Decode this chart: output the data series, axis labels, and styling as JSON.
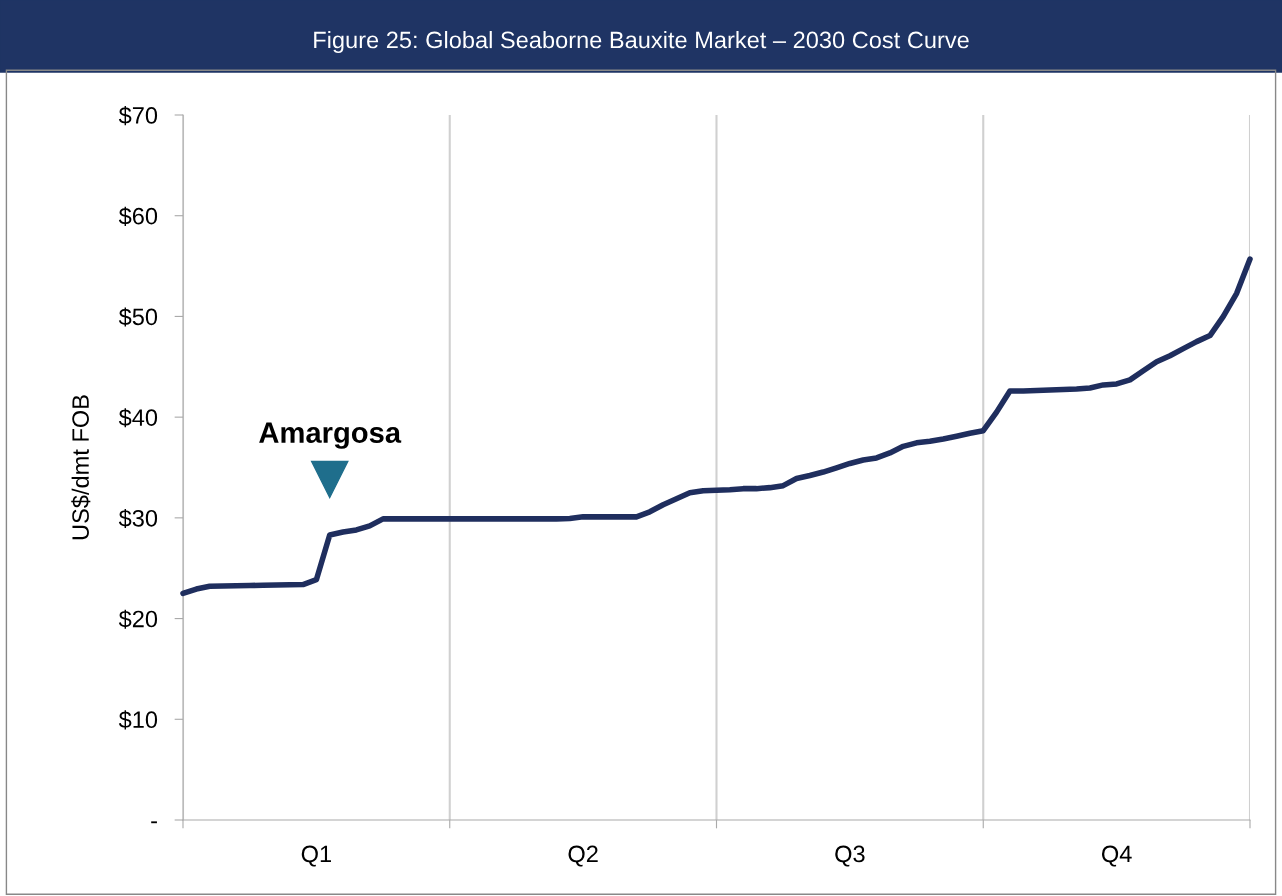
{
  "chart_data": {
    "type": "line",
    "title": "Figure 25: Global Seaborne Bauxite Market – 2030 Cost Curve",
    "ylabel": "US$/dmt FOB",
    "categories": [
      null,
      null,
      null,
      null,
      null,
      null,
      null,
      null,
      null,
      null,
      "Q1",
      null,
      null,
      null,
      null,
      null,
      null,
      null,
      null,
      null,
      null,
      null,
      null,
      null,
      null,
      null,
      null,
      null,
      null,
      null,
      "Q2",
      null,
      null,
      null,
      null,
      null,
      null,
      null,
      null,
      null,
      null,
      null,
      null,
      null,
      null,
      null,
      null,
      null,
      null,
      null,
      "Q3",
      null,
      null,
      null,
      null,
      null,
      null,
      null,
      null,
      null,
      null,
      null,
      null,
      null,
      null,
      null,
      null,
      null,
      null,
      null,
      "Q4",
      null,
      null,
      null,
      null,
      null,
      null,
      null,
      null,
      null,
      null
    ],
    "series": [
      {
        "color": "#1f2e5e",
        "values": [
          22.5,
          22.93,
          23.21,
          23.24,
          23.26,
          23.28,
          23.31,
          23.33,
          23.36,
          23.38,
          23.86,
          28.3,
          28.6,
          28.8,
          29.2,
          29.9,
          29.9,
          29.9,
          29.9,
          29.9,
          29.9,
          29.9,
          29.9,
          29.9,
          29.9,
          29.9,
          29.9,
          29.9,
          29.9,
          29.94,
          30.1,
          30.1,
          30.1,
          30.1,
          30.1,
          30.6,
          31.3,
          31.9,
          32.5,
          32.7,
          32.75,
          32.8,
          32.9,
          32.9,
          33.0,
          33.2,
          33.9,
          34.2,
          34.55,
          34.97,
          35.4,
          35.75,
          35.95,
          36.45,
          37.1,
          37.45,
          37.6,
          37.83,
          38.1,
          38.4,
          38.65,
          40.5,
          42.6,
          42.6,
          42.65,
          42.7,
          42.75,
          42.8,
          42.9,
          43.2,
          43.3,
          43.7,
          44.6,
          45.5,
          46.1,
          46.8,
          47.5,
          48.1,
          50.0,
          52.3,
          55.7
        ]
      }
    ],
    "ylim": [
      0,
      70
    ],
    "yticks": [
      {
        "value": 0,
        "label": "-"
      },
      {
        "value": 10,
        "label": "$10"
      },
      {
        "value": 20,
        "label": "$20"
      },
      {
        "value": 30,
        "label": "$30"
      },
      {
        "value": 40,
        "label": "$40"
      },
      {
        "value": 50,
        "label": "$50"
      },
      {
        "value": 60,
        "label": "$60"
      },
      {
        "value": 70,
        "label": "$70"
      }
    ],
    "grid": "x",
    "marker": "none",
    "line_style": "solid",
    "annotations": [
      {
        "text": "Amargosa",
        "y": 28.3
      }
    ]
  }
}
